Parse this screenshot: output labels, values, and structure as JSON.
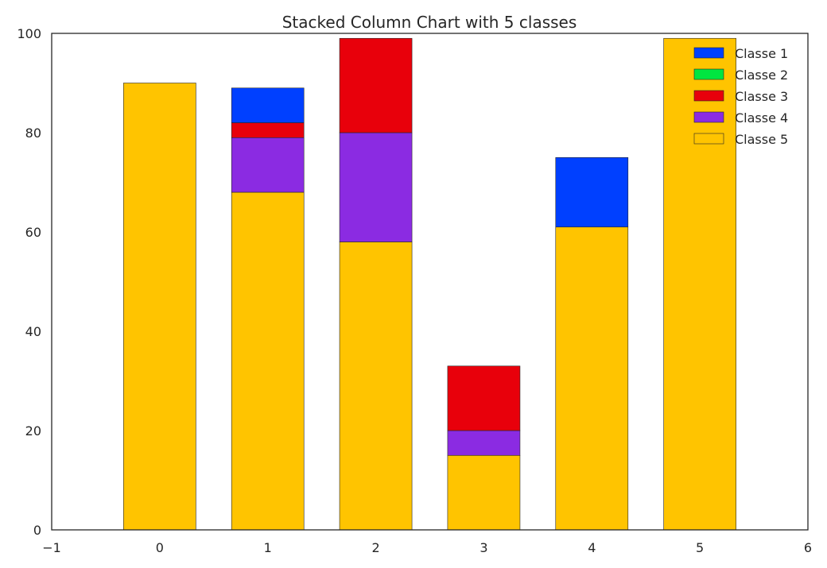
{
  "chart_data": {
    "type": "bar",
    "stacked": true,
    "title": "Stacked Column Chart with 5 classes",
    "xlabel": "",
    "ylabel": "",
    "categories": [
      0,
      1,
      2,
      3,
      4,
      5
    ],
    "xlim": [
      -1,
      6
    ],
    "ylim": [
      0,
      100
    ],
    "xticks": [
      "−1",
      "0",
      "1",
      "2",
      "3",
      "4",
      "5",
      "6"
    ],
    "yticks": [
      "0",
      "20",
      "40",
      "60",
      "80",
      "100"
    ],
    "grid": false,
    "legend_position": "top-right",
    "series": [
      {
        "name": "Classe 1",
        "color": "#0040ff",
        "values": [
          0,
          7,
          0,
          0,
          14,
          0
        ]
      },
      {
        "name": "Classe 2",
        "color": "#00e640",
        "values": [
          0,
          0,
          0,
          0,
          0,
          0
        ]
      },
      {
        "name": "Classe 3",
        "color": "#e8000b",
        "values": [
          0,
          3,
          19,
          13,
          0,
          0
        ]
      },
      {
        "name": "Classe 4",
        "color": "#8b2be2",
        "values": [
          0,
          11,
          22,
          5,
          0,
          0
        ]
      },
      {
        "name": "Classe 5",
        "color": "#ffc400",
        "values": [
          90,
          68,
          58,
          15,
          61,
          99
        ]
      }
    ],
    "stack_order_bottom_to_top": [
      "Classe 5",
      "Classe 4",
      "Classe 3",
      "Classe 2",
      "Classe 1"
    ]
  }
}
